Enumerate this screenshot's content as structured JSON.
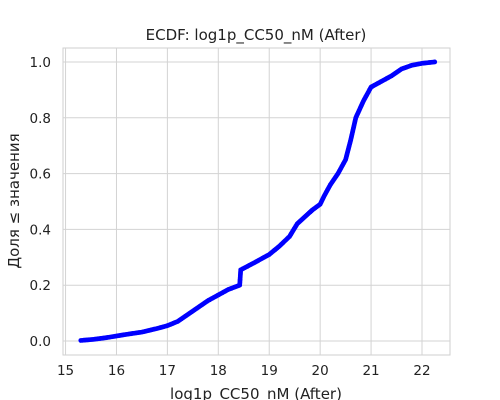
{
  "chart_data": {
    "type": "scatter",
    "title": "ECDF: log1p_CC50_nM (After)",
    "xlabel": "log1p_CC50_nM (After)",
    "ylabel": "Доля ≤ значения",
    "xlim": [
      14.95,
      22.55
    ],
    "ylim": [
      -0.05,
      1.05
    ],
    "x_ticks": [
      "15",
      "16",
      "17",
      "18",
      "19",
      "20",
      "21",
      "22"
    ],
    "y_ticks": [
      "0.0",
      "0.2",
      "0.4",
      "0.6",
      "0.8",
      "1.0"
    ],
    "grid": true,
    "marker_color": "#0000ff",
    "series": [
      {
        "curve_points": [
          [
            15.3,
            0.002
          ],
          [
            15.55,
            0.006
          ],
          [
            15.8,
            0.012
          ],
          [
            16.0,
            0.018
          ],
          [
            16.2,
            0.024
          ],
          [
            16.5,
            0.032
          ],
          [
            16.8,
            0.045
          ],
          [
            17.0,
            0.055
          ],
          [
            17.2,
            0.07
          ],
          [
            17.4,
            0.095
          ],
          [
            17.6,
            0.12
          ],
          [
            17.8,
            0.145
          ],
          [
            18.0,
            0.165
          ],
          [
            18.2,
            0.185
          ],
          [
            18.42,
            0.2
          ],
          [
            18.44,
            0.255
          ],
          [
            18.7,
            0.28
          ],
          [
            19.0,
            0.31
          ],
          [
            19.2,
            0.34
          ],
          [
            19.4,
            0.375
          ],
          [
            19.55,
            0.42
          ],
          [
            19.7,
            0.445
          ],
          [
            19.85,
            0.47
          ],
          [
            20.0,
            0.49
          ],
          [
            20.08,
            0.52
          ],
          [
            20.2,
            0.56
          ],
          [
            20.35,
            0.6
          ],
          [
            20.5,
            0.65
          ],
          [
            20.6,
            0.72
          ],
          [
            20.7,
            0.8
          ],
          [
            20.85,
            0.86
          ],
          [
            21.0,
            0.91
          ],
          [
            21.2,
            0.93
          ],
          [
            21.4,
            0.95
          ],
          [
            21.6,
            0.975
          ],
          [
            21.8,
            0.988
          ],
          [
            22.0,
            0.995
          ],
          [
            22.25,
            1.0
          ]
        ]
      }
    ]
  }
}
